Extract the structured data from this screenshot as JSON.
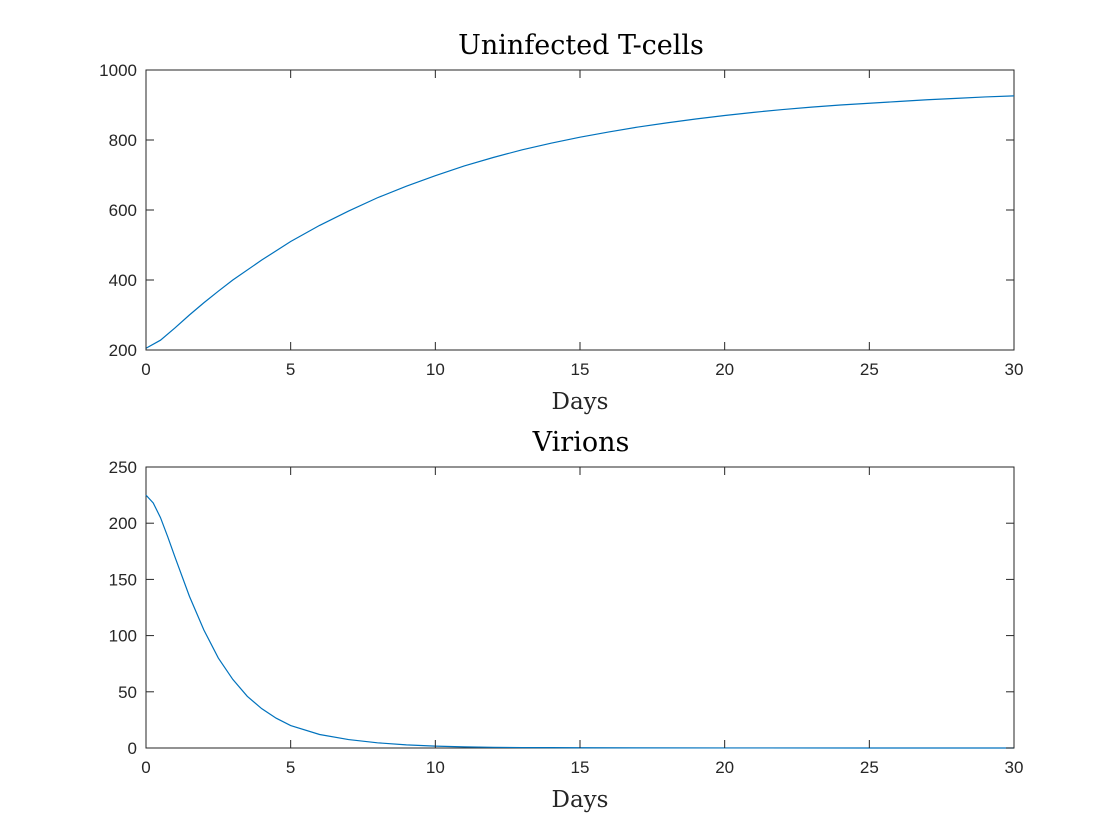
{
  "chart_data": [
    {
      "type": "line",
      "title": "Uninfected T-cells",
      "xlabel": "Days",
      "ylabel": "",
      "xlim": [
        0,
        30
      ],
      "ylim": [
        200,
        1000
      ],
      "xticks": [
        0,
        5,
        10,
        15,
        20,
        25,
        30
      ],
      "yticks": [
        200,
        400,
        600,
        800,
        1000
      ],
      "grid": false,
      "color": "#0072BD",
      "series": [
        {
          "x": [
            0,
            0.5,
            1,
            1.5,
            2,
            2.5,
            3,
            4,
            5,
            6,
            7,
            8,
            9,
            10,
            11,
            12,
            13,
            14,
            15,
            16,
            17,
            18,
            19,
            20,
            21,
            22,
            23,
            24,
            25,
            26,
            27,
            28,
            29,
            30
          ],
          "values": [
            205,
            228,
            263,
            300,
            335,
            368,
            400,
            457,
            510,
            556,
            597,
            635,
            668,
            698,
            726,
            750,
            772,
            791,
            808,
            823,
            837,
            849,
            860,
            870,
            879,
            887,
            894,
            900,
            905,
            910,
            915,
            919,
            923,
            926
          ]
        }
      ]
    },
    {
      "type": "line",
      "title": "Virions",
      "xlabel": "Days",
      "ylabel": "",
      "xlim": [
        0,
        30
      ],
      "ylim": [
        0,
        250
      ],
      "xticks": [
        0,
        5,
        10,
        15,
        20,
        25,
        30
      ],
      "yticks": [
        0,
        50,
        100,
        150,
        200,
        250
      ],
      "grid": false,
      "color": "#0072BD",
      "series": [
        {
          "x": [
            0,
            0.25,
            0.5,
            0.75,
            1,
            1.5,
            2,
            2.5,
            3,
            3.5,
            4,
            4.5,
            5,
            6,
            7,
            8,
            9,
            10,
            11,
            12,
            13,
            14,
            15,
            17,
            20,
            25,
            30
          ],
          "values": [
            225,
            218,
            205,
            188,
            170,
            135,
            105,
            80,
            61,
            46,
            35,
            26.5,
            20,
            12,
            7.5,
            4.6,
            2.8,
            1.7,
            1.0,
            0.6,
            0.4,
            0.3,
            0.2,
            0.1,
            0.05,
            0.02,
            0.01
          ]
        }
      ]
    }
  ]
}
